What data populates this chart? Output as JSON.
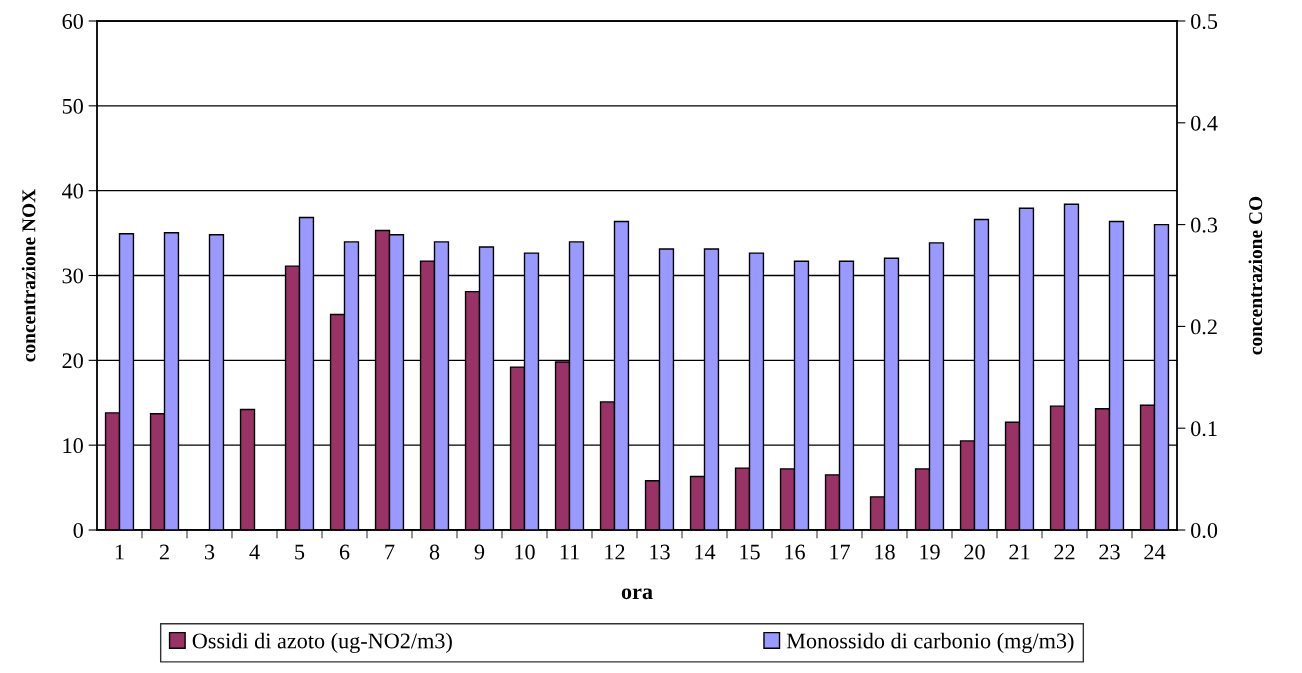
{
  "chart_data": {
    "type": "bar",
    "xlabel": "ora",
    "ylabel": "concentrazione NOX",
    "y2label": "concentrazione CO",
    "categories": [
      "1",
      "2",
      "3",
      "4",
      "5",
      "6",
      "7",
      "8",
      "9",
      "10",
      "11",
      "12",
      "13",
      "14",
      "15",
      "16",
      "17",
      "18",
      "19",
      "20",
      "21",
      "22",
      "23",
      "24"
    ],
    "series": [
      {
        "name": "Ossidi di azoto (ug-NO2/m3)",
        "color": "#993366",
        "values": [
          13.8,
          13.7,
          null,
          14.2,
          31.1,
          25.4,
          35.3,
          31.7,
          28.1,
          19.2,
          19.8,
          15.1,
          5.8,
          6.3,
          7.3,
          7.2,
          6.5,
          3.9,
          7.2,
          10.5,
          12.7,
          14.6,
          14.3,
          14.7
        ]
      },
      {
        "name": "Monossido di carbonio (mg/m3)",
        "color": "#9999ff",
        "axis": "y2",
        "values": [
          0.291,
          0.292,
          0.29,
          null,
          0.307,
          0.283,
          0.29,
          0.283,
          0.278,
          0.272,
          0.283,
          0.303,
          0.276,
          0.276,
          0.272,
          0.264,
          0.264,
          0.267,
          0.282,
          0.305,
          0.316,
          0.32,
          0.303,
          0.3
        ]
      }
    ],
    "ylim": [
      0,
      60
    ],
    "yticks": [
      0,
      10,
      20,
      30,
      40,
      50,
      60
    ],
    "y2lim": [
      0,
      0.5
    ],
    "y2ticks": [
      {
        "value": 0,
        "label": "0.0"
      },
      {
        "value": 0.1,
        "label": "0.1"
      },
      {
        "value": 0.2,
        "label": "0.2"
      },
      {
        "value": 0.3,
        "label": "0.3"
      },
      {
        "value": 0.4,
        "label": "0.4"
      },
      {
        "value": 0.5,
        "label": "0.5"
      }
    ],
    "grid": "y",
    "legend": "bottom"
  }
}
